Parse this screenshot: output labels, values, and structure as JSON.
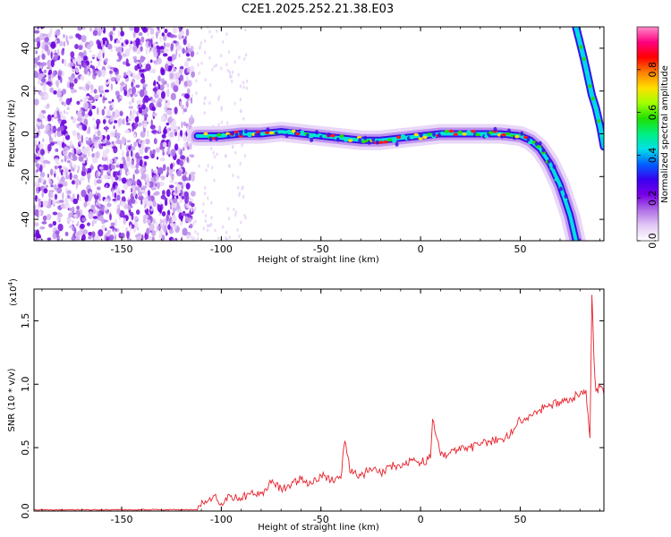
{
  "title": "C2E1.2025.252.21.38.E03",
  "chart_data": [
    {
      "type": "heatmap",
      "name": "spectrogram",
      "xlabel": "Height of straight line (km)",
      "ylabel": "Frequency (Hz)",
      "xlim": [
        -194,
        92
      ],
      "ylim": [
        -50,
        50
      ],
      "xticks": [
        -150,
        -100,
        -50,
        0,
        50
      ],
      "yticks": [
        -40,
        -20,
        0,
        20,
        40
      ],
      "grid": false,
      "colorbar": {
        "label": "Normalized spectral amplitude",
        "range": [
          0.0,
          1.0
        ],
        "ticks": [
          0.0,
          0.2,
          0.4,
          0.6,
          0.8
        ],
        "colormap": [
          "#ffffff",
          "#e3c8f5",
          "#b070e6",
          "#7a00e6",
          "#3a00f0",
          "#0060ff",
          "#00e0e8",
          "#00f080",
          "#20e000",
          "#a0ff00",
          "#ffe000",
          "#ff8000",
          "#ff0000",
          "#ff0080",
          "#ff8cc8"
        ]
      },
      "trace": {
        "description": "main echo track",
        "x": [
          -112,
          -100,
          -90,
          -80,
          -70,
          -60,
          -50,
          -40,
          -30,
          -20,
          -10,
          0,
          10,
          20,
          30,
          40,
          50,
          55,
          60,
          65,
          70,
          75,
          78
        ],
        "y": [
          -1,
          -1,
          0,
          0,
          1,
          0,
          -1,
          -2,
          -3,
          -3,
          -2,
          -1,
          0,
          0,
          0,
          0,
          -1,
          -3,
          -7,
          -14,
          -24,
          -38,
          -50
        ]
      },
      "trace2": {
        "description": "second echo track",
        "x": [
          78,
          82,
          86,
          88,
          90,
          92
        ],
        "y": [
          50,
          35,
          18,
          12,
          4,
          -6
        ]
      }
    },
    {
      "type": "line",
      "name": "snr",
      "xlabel": "Height of straight line (km)",
      "ylabel": "SNR (10 * v/v)",
      "scale_label": "(x10",
      "scale_exponent": "4",
      "scale_suffix": ")",
      "xlim": [
        -194,
        92
      ],
      "ylim": [
        0,
        1.75
      ],
      "xticks": [
        -150,
        -100,
        -50,
        0,
        50
      ],
      "yticks": [
        0.0,
        0.5,
        1.0,
        1.5
      ],
      "grid": false,
      "color": "#e8202a",
      "x": [
        -194,
        -180,
        -160,
        -140,
        -120,
        -112,
        -108,
        -104,
        -100,
        -95,
        -90,
        -85,
        -80,
        -75,
        -70,
        -65,
        -60,
        -55,
        -50,
        -45,
        -40,
        -38,
        -35,
        -30,
        -25,
        -20,
        -15,
        -10,
        -5,
        0,
        5,
        6,
        10,
        15,
        20,
        25,
        30,
        35,
        40,
        45,
        47,
        50,
        55,
        60,
        65,
        70,
        75,
        80,
        83,
        85,
        86,
        87,
        88,
        90,
        92
      ],
      "y": [
        0.01,
        0.01,
        0.01,
        0.01,
        0.01,
        0.01,
        0.08,
        0.12,
        0.06,
        0.12,
        0.1,
        0.15,
        0.14,
        0.22,
        0.18,
        0.2,
        0.25,
        0.22,
        0.28,
        0.24,
        0.26,
        0.55,
        0.3,
        0.28,
        0.33,
        0.3,
        0.36,
        0.34,
        0.4,
        0.38,
        0.42,
        0.72,
        0.44,
        0.46,
        0.48,
        0.5,
        0.52,
        0.55,
        0.57,
        0.6,
        0.65,
        0.72,
        0.76,
        0.8,
        0.83,
        0.86,
        0.89,
        0.92,
        0.95,
        0.58,
        1.7,
        1.2,
        0.95,
        0.98,
        0.92
      ]
    }
  ]
}
